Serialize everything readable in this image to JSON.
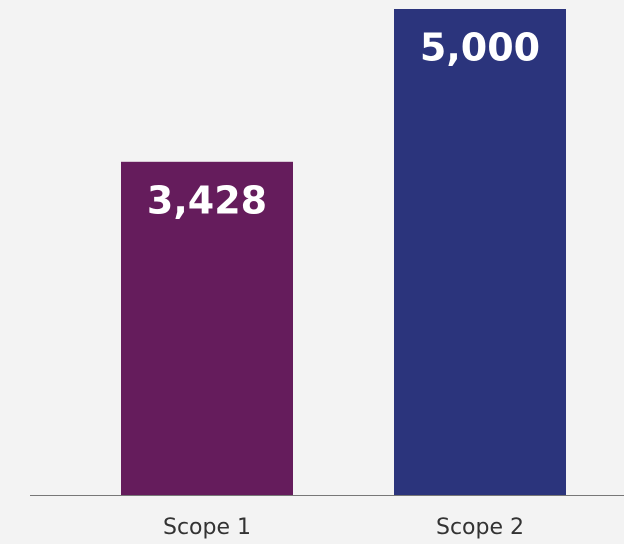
{
  "chart_data": {
    "type": "bar",
    "categories": [
      "Scope 1",
      "Scope 2"
    ],
    "values": [
      3428,
      5000
    ],
    "value_labels": [
      "3,428",
      "5,000"
    ],
    "colors": [
      "#651c5c",
      "#2b347c"
    ]
  }
}
